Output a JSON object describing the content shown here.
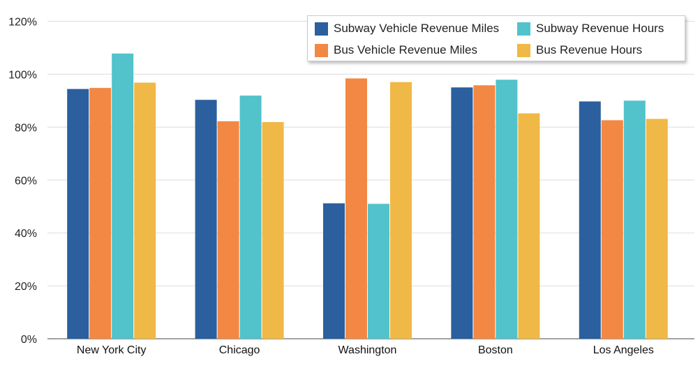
{
  "chart_data": {
    "type": "bar",
    "categories": [
      "New York City",
      "Chicago",
      "Washington",
      "Boston",
      "Los Angeles"
    ],
    "series": [
      {
        "name": "Subway Vehicle Revenue Miles",
        "color": "#2b5f9e",
        "values": [
          94.4,
          90.3,
          51.2,
          95.0,
          89.7
        ]
      },
      {
        "name": "Bus Vehicle Revenue Miles",
        "color": "#f28843",
        "values": [
          94.8,
          82.2,
          98.4,
          95.8,
          82.6
        ]
      },
      {
        "name": "Subway Revenue Hours",
        "color": "#52c2cb",
        "values": [
          107.8,
          91.9,
          51.0,
          97.9,
          90.0
        ]
      },
      {
        "name": "Bus Revenue Hours",
        "color": "#f0b846",
        "values": [
          96.8,
          81.9,
          97.0,
          85.2,
          83.1
        ]
      }
    ],
    "yticks": [
      "0%",
      "20%",
      "40%",
      "60%",
      "80%",
      "100%",
      "120%"
    ],
    "ylim": [
      0,
      120
    ],
    "grid": true,
    "legend_position": "top-right",
    "title": "",
    "xlabel": "",
    "ylabel": ""
  }
}
